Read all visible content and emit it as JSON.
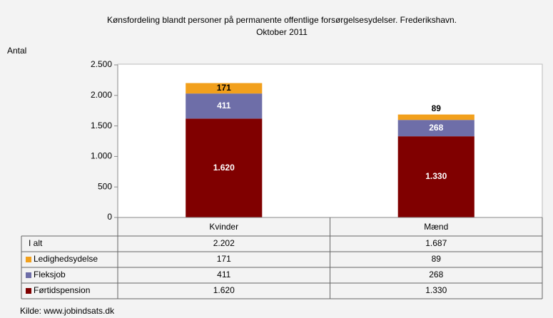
{
  "chart_data": {
    "type": "stacked_bar",
    "title": [
      "Kønsfordeling blandt personer på permanente offentlige forsørgelsesydelser. Frederikshavn.",
      "Oktober 2011"
    ],
    "ylabel": "Antal",
    "source": "Kilde: www.jobindsats.dk",
    "categories": [
      "Kvinder",
      "Mænd"
    ],
    "series": [
      {
        "name": "Førtidspension",
        "color": "#800000",
        "values": [
          1620,
          1330
        ],
        "value_labels": [
          "1.620",
          "1.330"
        ]
      },
      {
        "name": "Fleksjob",
        "color": "#6e6ea8",
        "values": [
          411,
          268
        ],
        "value_labels": [
          "411",
          "268"
        ]
      },
      {
        "name": "Ledighedsydelse",
        "color": "#f2a01c",
        "values": [
          171,
          89
        ],
        "value_labels": [
          "171",
          "89"
        ]
      }
    ],
    "totals": {
      "name": "I alt",
      "values": [
        2202,
        1687
      ],
      "value_labels": [
        "2.202",
        "1.687"
      ]
    },
    "ylim": [
      0,
      2500
    ],
    "yticks": [
      0,
      500,
      {
        "value": 1000,
        "label": "1.000"
      },
      {
        "value": 1500,
        "label": "1.500"
      },
      {
        "value": 2000,
        "label": "2.000"
      },
      {
        "value": 2500,
        "label": "2.500"
      }
    ]
  }
}
